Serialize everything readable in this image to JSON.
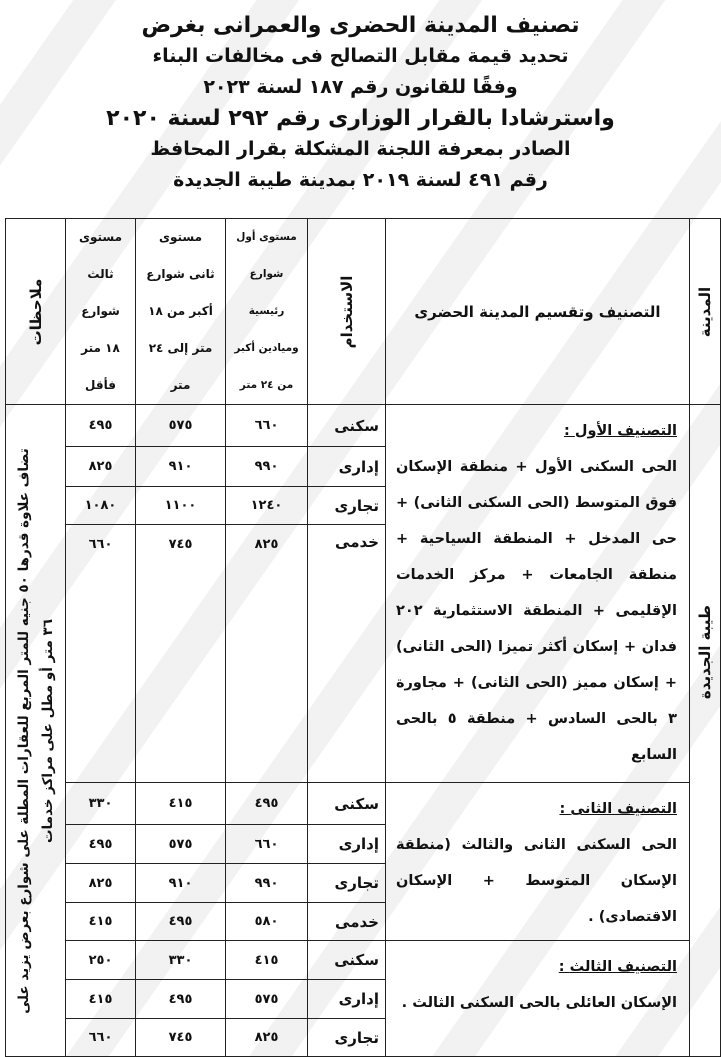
{
  "header": {
    "lines": [
      "تصنيف المدينة الحضرى والعمرانى بغرض",
      "تحديد قيمة مقابل التصالح فى مخالفات البناء",
      "وفقًا للقانون رقم ١٨٧ لسنة ٢٠٢٣",
      "واسترشادا بالقرار الوزارى رقم ٢٩٢ لسنة ٢٠٢٠",
      "الصادر بمعرفة اللجنة المشكلة بقرار المحافظ",
      "رقم ٤٩١ لسنة ٢٠١٩ بمدينة طيبة الجديدة"
    ]
  },
  "table": {
    "columns": {
      "city": "المدينة",
      "classification": "التصنيف وتقسيم المدينة الحضرى",
      "usage": "الاستخدام",
      "level1": [
        "مستوى أول",
        "شوارع",
        "رئيسية",
        "وميادين أكبر",
        "من ٢٤ متر"
      ],
      "level2": [
        "مستوى",
        "ثانى شوارع",
        "أكبر من ١٨",
        "متر إلى ٢٤",
        "متر"
      ],
      "level3": [
        "مستوى",
        "ثالث",
        "شوارع",
        "١٨ متر",
        "فأقل"
      ],
      "notes": "ملاحظات"
    },
    "city_name": "طيبة الجديدة",
    "notes_text": [
      "تضاف علاوة قدرها ٥٠ جنيه للمتر المربع للعقارات المطلة على شوارع بعرض يزيد على",
      "٣٦ متر أو مطل على مراكز خدمات"
    ],
    "groups": [
      {
        "title": "التصنيف الأول",
        "colon": " :",
        "body": "الحى السكنى الأول + منطقة الإسكان فوق المتوسط (الحى السكنى الثانى) + حى المدخل + المنطقة السياحية + منطقة الجامعات + مركز الخدمات الإقليمى + المنطقة الاستثمارية ٢٠٢ فدان + إسكان أكثر تميزا (الحى الثانى) + إسكان مميز (الحى الثانى) + مجاورة ٣ بالحى السادس + منطقة ٥ بالحى السابع",
        "rows": [
          {
            "usage": "سكنى",
            "l1": "٦٦٠",
            "l2": "٥٧٥",
            "l3": "٤٩٥"
          },
          {
            "usage": "إدارى",
            "l1": "٩٩٠",
            "l2": "٩١٠",
            "l3": "٨٢٥"
          },
          {
            "usage": "تجارى",
            "l1": "١٢٤٠",
            "l2": "١١٠٠",
            "l3": "١٠٨٠"
          },
          {
            "usage": "خدمى",
            "l1": "٨٢٥",
            "l2": "٧٤٥",
            "l3": "٦٦٠"
          }
        ]
      },
      {
        "title": "التصنيف الثانى",
        "colon": " :",
        "body": "الحى السكنى الثانى والثالث (منطقة الإسكان المتوسط + الإسكان الاقتصادى) .",
        "rows": [
          {
            "usage": "سكنى",
            "l1": "٤٩٥",
            "l2": "٤١٥",
            "l3": "٣٣٠"
          },
          {
            "usage": "إدارى",
            "l1": "٦٦٠",
            "l2": "٥٧٥",
            "l3": "٤٩٥"
          },
          {
            "usage": "تجارى",
            "l1": "٩٩٠",
            "l2": "٩١٠",
            "l3": "٨٢٥"
          },
          {
            "usage": "خدمى",
            "l1": "٥٨٠",
            "l2": "٤٩٥",
            "l3": "٤١٥"
          }
        ]
      },
      {
        "title": "التصنيف الثالث",
        "colon": " :",
        "body": "الإسكان العائلى بالحى السكنى الثالث .",
        "rows": [
          {
            "usage": "سكنى",
            "l1": "٤١٥",
            "l2": "٣٣٠",
            "l3": "٢٥٠"
          },
          {
            "usage": "إدارى",
            "l1": "٥٧٥",
            "l2": "٤٩٥",
            "l3": "٤١٥"
          },
          {
            "usage": "تجارى",
            "l1": "٨٢٥",
            "l2": "٧٤٥",
            "l3": "٦٦٠"
          }
        ]
      }
    ]
  }
}
